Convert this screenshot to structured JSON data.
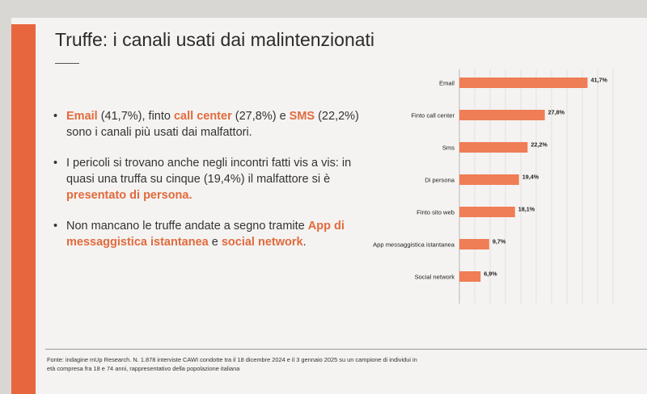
{
  "title": "Truffe: i canali usati dai malintenzionati",
  "bullets": [
    {
      "segments": [
        {
          "t": "Email",
          "hl": true
        },
        {
          "t": " (41,7%), finto ",
          "hl": false
        },
        {
          "t": "call center",
          "hl": true
        },
        {
          "t": " (27,8%) e ",
          "hl": false
        },
        {
          "t": "SMS",
          "hl": true
        },
        {
          "t": " (22,2%) sono  i canali più usati dai malfattori.",
          "hl": false
        }
      ]
    },
    {
      "segments": [
        {
          "t": "I pericoli si trovano anche negli incontri fatti vis a vis: in quasi una truffa su cinque (19,4%) il malfattore si è ",
          "hl": false
        },
        {
          "t": "presentato di persona.",
          "hl": true
        }
      ]
    },
    {
      "segments": [
        {
          "t": "Non mancano le truffe andate a segno tramite ",
          "hl": false
        },
        {
          "t": "App di messaggistica istantanea",
          "hl": true
        },
        {
          "t": " e ",
          "hl": false
        },
        {
          "t": "social network",
          "hl": true
        },
        {
          "t": ".",
          "hl": false
        }
      ]
    }
  ],
  "bullet_glyph": "•",
  "footer": "Fonte: indagine mUp Research. N. 1.878 interviste CAWI condotte tra il 18 dicembre 2024 e il 3 gennaio 2025 su un campione di individui in età compresa fra 18 e 74 anni, rappresentativo della popolazione italiana",
  "colors": {
    "accent": "#e8663d",
    "bar": "#ef7d55",
    "highlight": "#e26a3c"
  },
  "chart_data": {
    "type": "bar",
    "orientation": "horizontal",
    "categories": [
      "Email",
      "Finto call center",
      "Sms",
      "Di persona",
      "Finto sito web",
      "App messaggistica istantanea",
      "Social network"
    ],
    "values": [
      41.7,
      27.8,
      22.2,
      19.4,
      18.1,
      9.7,
      6.9
    ],
    "value_labels": [
      "41,7%",
      "27,8%",
      "22,2%",
      "19,4%",
      "18,1%",
      "9,7%",
      "6,9%"
    ],
    "xlim": [
      0,
      50
    ],
    "grid": true,
    "title": ""
  }
}
